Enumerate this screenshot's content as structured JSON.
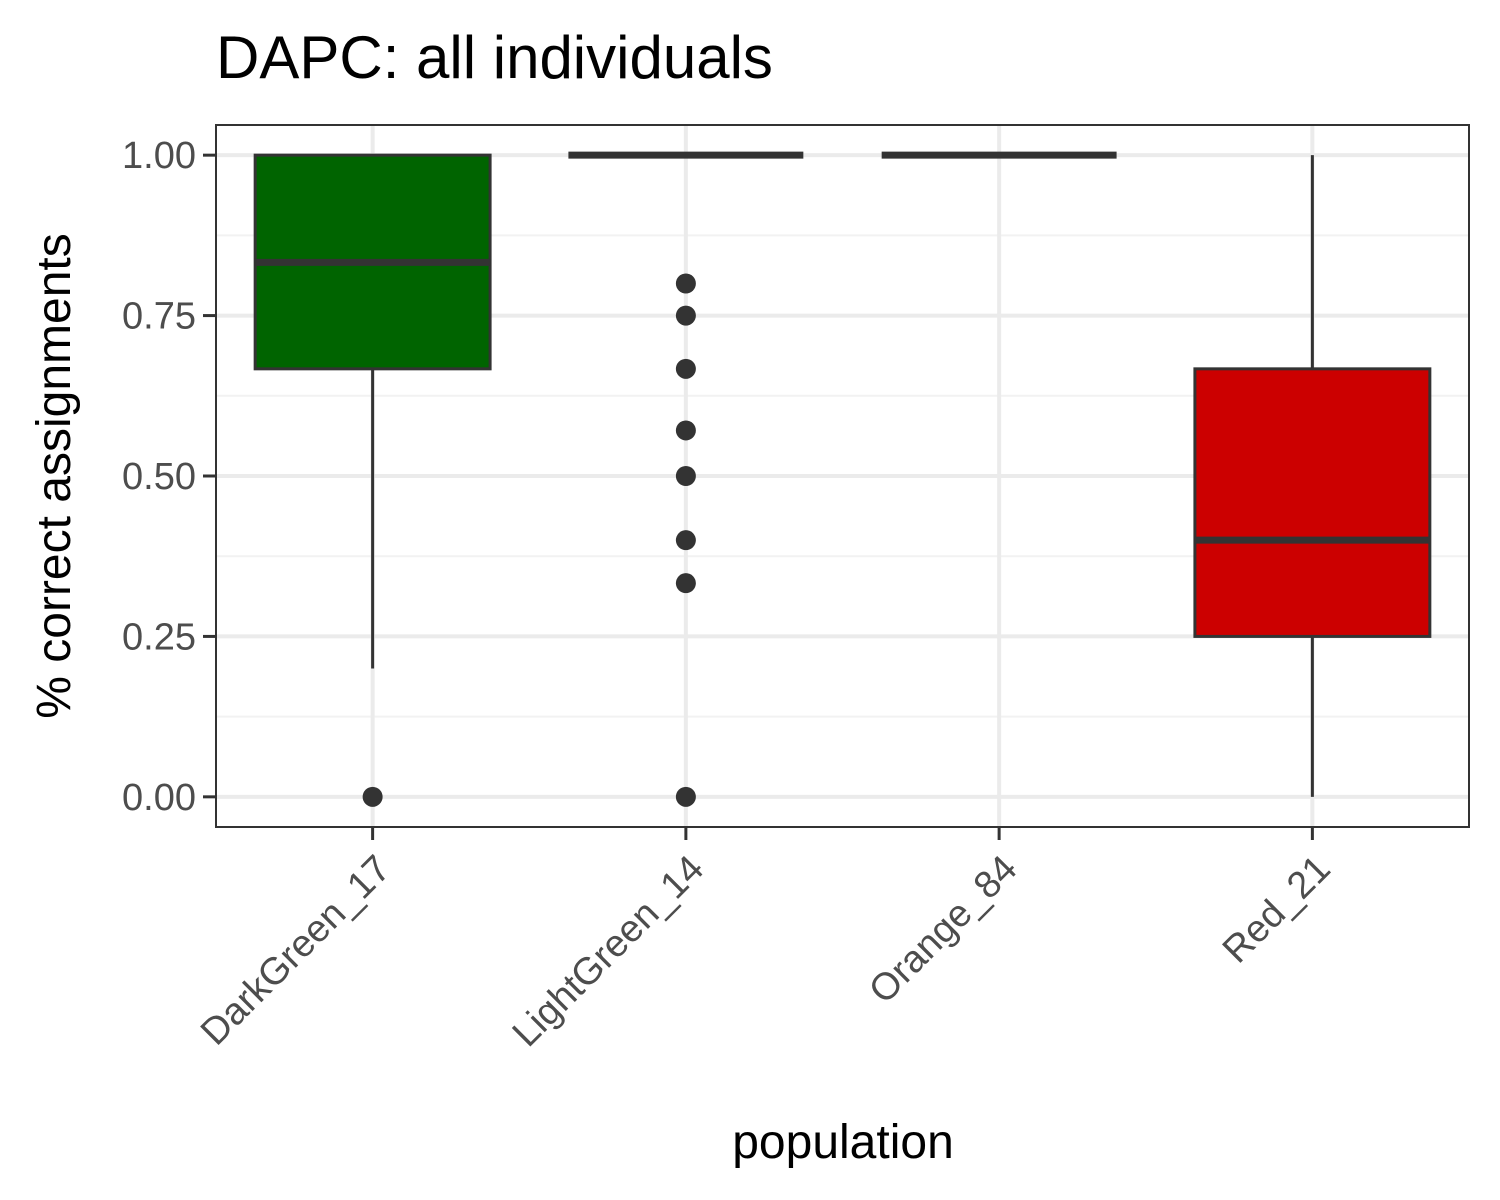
{
  "chart_data": {
    "type": "box",
    "title": "DAPC: all individuals",
    "xlabel": "population",
    "ylabel": "% correct assignments",
    "ylim": [
      -0.047,
      1.047
    ],
    "yticks": [
      "0.00",
      "0.25",
      "0.50",
      "0.75",
      "1.00"
    ],
    "grid": true,
    "legend": "none",
    "categories": [
      "DarkGreen_17",
      "LightGreen_14",
      "Orange_84",
      "Red_21"
    ],
    "boxes": [
      {
        "category": "DarkGreen_17",
        "fill": "#006400",
        "q1": 0.667,
        "median": 0.833,
        "q3": 1.0,
        "whisker_low": 0.2,
        "whisker_high": 1.0,
        "outliers": [
          0.0
        ]
      },
      {
        "category": "LightGreen_14",
        "fill": "#90EE90",
        "q1": 1.0,
        "median": 1.0,
        "q3": 1.0,
        "whisker_low": 1.0,
        "whisker_high": 1.0,
        "outliers": [
          0.8,
          0.75,
          0.667,
          0.571,
          0.5,
          0.4,
          0.333,
          0.0
        ]
      },
      {
        "category": "Orange_84",
        "fill": "#FFA500",
        "q1": 1.0,
        "median": 1.0,
        "q3": 1.0,
        "whisker_low": 1.0,
        "whisker_high": 1.0,
        "outliers": []
      },
      {
        "category": "Red_21",
        "fill": "#CC0000",
        "q1": 0.25,
        "median": 0.4,
        "q3": 0.667,
        "whisker_low": 0.0,
        "whisker_high": 1.0,
        "outliers": []
      }
    ],
    "colors": {
      "box_outline": "#333333",
      "panel_border": "#333333",
      "grid_major": "#ebebeb",
      "grid_minor": "#f2f2f2",
      "tick_label": "#4d4d4d"
    }
  }
}
